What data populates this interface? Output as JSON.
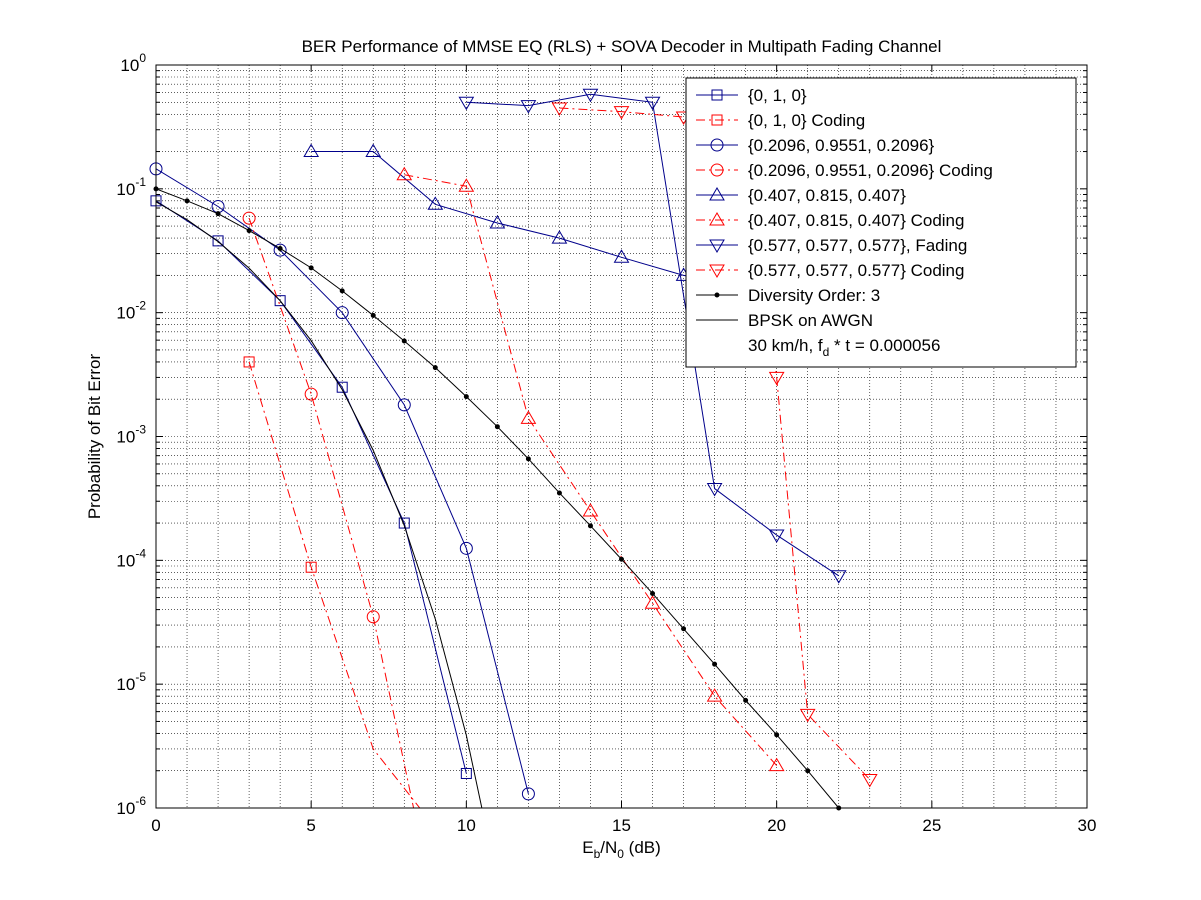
{
  "chart_data": {
    "type": "line",
    "title": "BER Performance of MMSE EQ (RLS) + SOVA Decoder in Multipath Fading Channel",
    "xlabel": {
      "main": "E",
      "sub1": "b",
      "mid": "/N",
      "sub2": "0",
      "tail": " (dB)"
    },
    "ylabel": "Probability of Bit Error",
    "xlim": [
      0,
      30
    ],
    "ylim": [
      1e-06,
      1
    ],
    "yscale": "log",
    "grid": true,
    "legend_position": "top-right",
    "x_ticks": [
      "0",
      "5",
      "10",
      "15",
      "20",
      "25",
      "30"
    ],
    "y_ticks": [
      {
        "base": "10",
        "exp": "0"
      },
      {
        "base": "10",
        "exp": "-1"
      },
      {
        "base": "10",
        "exp": "-2"
      },
      {
        "base": "10",
        "exp": "-3"
      },
      {
        "base": "10",
        "exp": "-4"
      },
      {
        "base": "10",
        "exp": "-5"
      },
      {
        "base": "10",
        "exp": "-6"
      }
    ],
    "annotation": {
      "pre": "30 km/h, f",
      "sub": "d",
      "post": " * t = 0.000056"
    },
    "series": [
      {
        "name": "{0, 1, 0}",
        "color": "#00008b",
        "dash": "solid",
        "marker": "square",
        "x": [
          0,
          2,
          4,
          6,
          8,
          10
        ],
        "y": [
          0.08,
          0.038,
          0.0125,
          0.0025,
          0.0002,
          1.9e-06
        ]
      },
      {
        "name": "{0, 1, 0} Coding",
        "color": "#ff0000",
        "dash": "dashdot",
        "marker": "square",
        "x": [
          3,
          5,
          7,
          8.5
        ],
        "y": [
          0.004,
          8.8e-05,
          3e-06,
          1e-06
        ],
        "marker_count": 2
      },
      {
        "name": "{0.2096, 0.9551, 0.2096}",
        "color": "#00008b",
        "dash": "solid",
        "marker": "circle",
        "x": [
          0,
          2,
          4,
          6,
          8,
          10,
          12
        ],
        "y": [
          0.145,
          0.072,
          0.032,
          0.01,
          0.0018,
          0.000125,
          1.3e-06
        ]
      },
      {
        "name": "{0.2096, 0.9551, 0.2096} Coding",
        "color": "#ff0000",
        "dash": "dashdot",
        "marker": "circle",
        "x": [
          3,
          5,
          7,
          8.3
        ],
        "y": [
          0.058,
          0.0022,
          3.5e-05,
          1e-06
        ],
        "marker_count": 3
      },
      {
        "name": "{0.407, 0.815, 0.407}",
        "color": "#00008b",
        "dash": "solid",
        "marker": "triangle-up",
        "x": [
          5,
          7,
          9,
          11,
          13,
          15,
          17,
          18
        ],
        "y": [
          0.2,
          0.2,
          0.075,
          0.053,
          0.04,
          0.028,
          0.02,
          0.018
        ]
      },
      {
        "name": "{0.407, 0.815, 0.407} Coding",
        "color": "#ff0000",
        "dash": "dashdot",
        "marker": "triangle-up",
        "x": [
          8,
          10,
          12,
          14,
          16,
          18,
          20
        ],
        "y": [
          0.13,
          0.105,
          0.0014,
          0.00025,
          4.5e-05,
          8e-06,
          2.2e-06
        ]
      },
      {
        "name": "{0.577, 0.577, 0.577}, Fading",
        "color": "#00008b",
        "dash": "solid",
        "marker": "triangle-down",
        "x": [
          10,
          12,
          14,
          16,
          18,
          20,
          22
        ],
        "y": [
          0.5,
          0.47,
          0.58,
          0.5,
          0.00038,
          0.00016,
          7.5e-05
        ]
      },
      {
        "name": "{0.577, 0.577, 0.577} Coding",
        "color": "#ff0000",
        "dash": "dashdot",
        "marker": "triangle-down",
        "x": [
          13,
          15,
          17,
          19,
          20,
          21,
          23
        ],
        "y": [
          0.45,
          0.42,
          0.38,
          0.3,
          0.003,
          5.7e-06,
          1.7e-06
        ]
      },
      {
        "name": "Diversity Order: 3",
        "color": "#000000",
        "dash": "solid",
        "marker": "dot",
        "x": [
          0,
          1,
          2,
          3,
          4,
          5,
          6,
          7,
          8,
          9,
          10,
          11,
          12,
          13,
          14,
          15,
          16,
          17,
          18,
          19,
          20,
          21,
          22
        ],
        "y": [
          0.1,
          0.08,
          0.063,
          0.046,
          0.033,
          0.023,
          0.015,
          0.0095,
          0.0059,
          0.0036,
          0.0021,
          0.0012,
          0.00066,
          0.00035,
          0.00019,
          0.000102,
          5.4e-05,
          2.8e-05,
          1.45e-05,
          7.4e-06,
          3.9e-06,
          2e-06,
          1e-06
        ]
      },
      {
        "name": "BPSK on AWGN",
        "color": "#000000",
        "dash": "solid",
        "marker": "none",
        "x": [
          0,
          1,
          2,
          3,
          4,
          5,
          6,
          7,
          8,
          9,
          10,
          10.5
        ],
        "y": [
          0.0786,
          0.0563,
          0.0375,
          0.0229,
          0.0125,
          0.00595,
          0.00239,
          0.000773,
          0.000191,
          3.36e-05,
          3.87e-06,
          1e-06
        ]
      }
    ]
  }
}
